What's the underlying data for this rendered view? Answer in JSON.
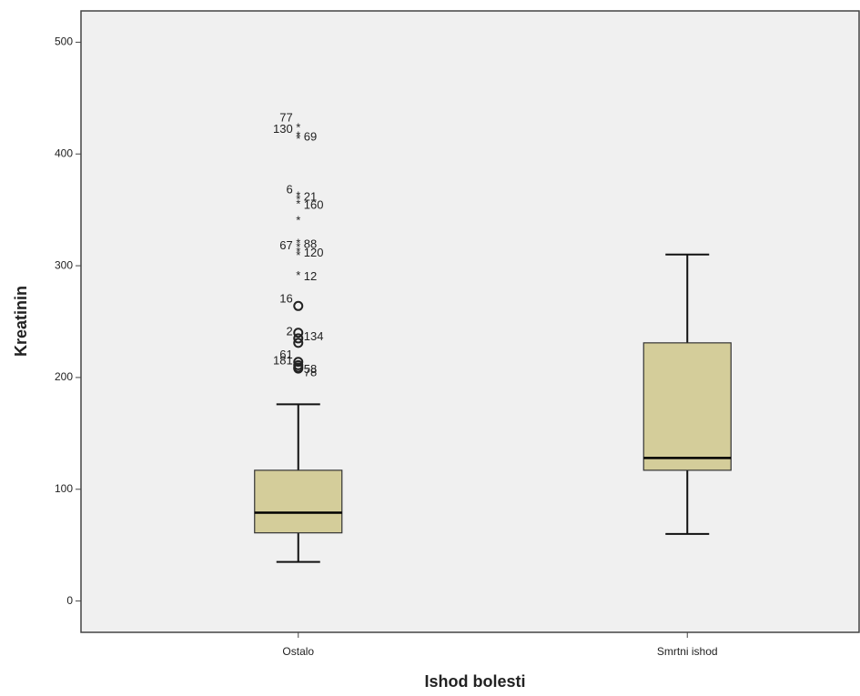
{
  "chart_data": {
    "type": "box",
    "x_label": "Ishod bolesti",
    "y_label": "Kreatinin",
    "categories": [
      "Ostalo",
      "Smrtni ishod"
    ],
    "color": "#d4cd9a",
    "background": "#f0f0f0",
    "ylim": [
      -28,
      528
    ],
    "yticks": [
      0,
      100,
      200,
      300,
      400,
      500
    ],
    "boxes": [
      {
        "whislo": 35,
        "q1": 61,
        "med": 79,
        "q3": 117,
        "whishi": 176,
        "outliers": [
          {
            "value": 426,
            "label": "77",
            "marker": "star"
          },
          {
            "value": 419,
            "label": "69",
            "marker": "star"
          },
          {
            "value": 416,
            "label": "130",
            "marker": "star"
          },
          {
            "value": 365,
            "label": "21",
            "marker": "star"
          },
          {
            "value": 362,
            "label": "6",
            "marker": "star"
          },
          {
            "value": 358,
            "label": "160",
            "marker": "star"
          },
          {
            "value": 343,
            "marker": "star"
          },
          {
            "value": 323,
            "label": "88",
            "marker": "star"
          },
          {
            "value": 319,
            "marker": "star"
          },
          {
            "value": 315,
            "label": "120",
            "marker": "star"
          },
          {
            "value": 312,
            "label": "67",
            "marker": "star"
          },
          {
            "value": 294,
            "label": "12",
            "marker": "star"
          },
          {
            "value": 264,
            "label": "16",
            "marker": "circle"
          },
          {
            "value": 240,
            "label": "134",
            "marker": "circle"
          },
          {
            "value": 235,
            "label": "2",
            "marker": "circle"
          },
          {
            "value": 231,
            "marker": "circle"
          },
          {
            "value": 214,
            "label": "61",
            "marker": "circle"
          },
          {
            "value": 211,
            "label": "58",
            "marker": "circle"
          },
          {
            "value": 209,
            "label": "181",
            "marker": "circle"
          },
          {
            "value": 208,
            "label": "78",
            "marker": "circle"
          }
        ]
      },
      {
        "whislo": 60,
        "q1": 117,
        "med": 128,
        "q3": 231,
        "whishi": 310,
        "outliers": []
      }
    ]
  }
}
